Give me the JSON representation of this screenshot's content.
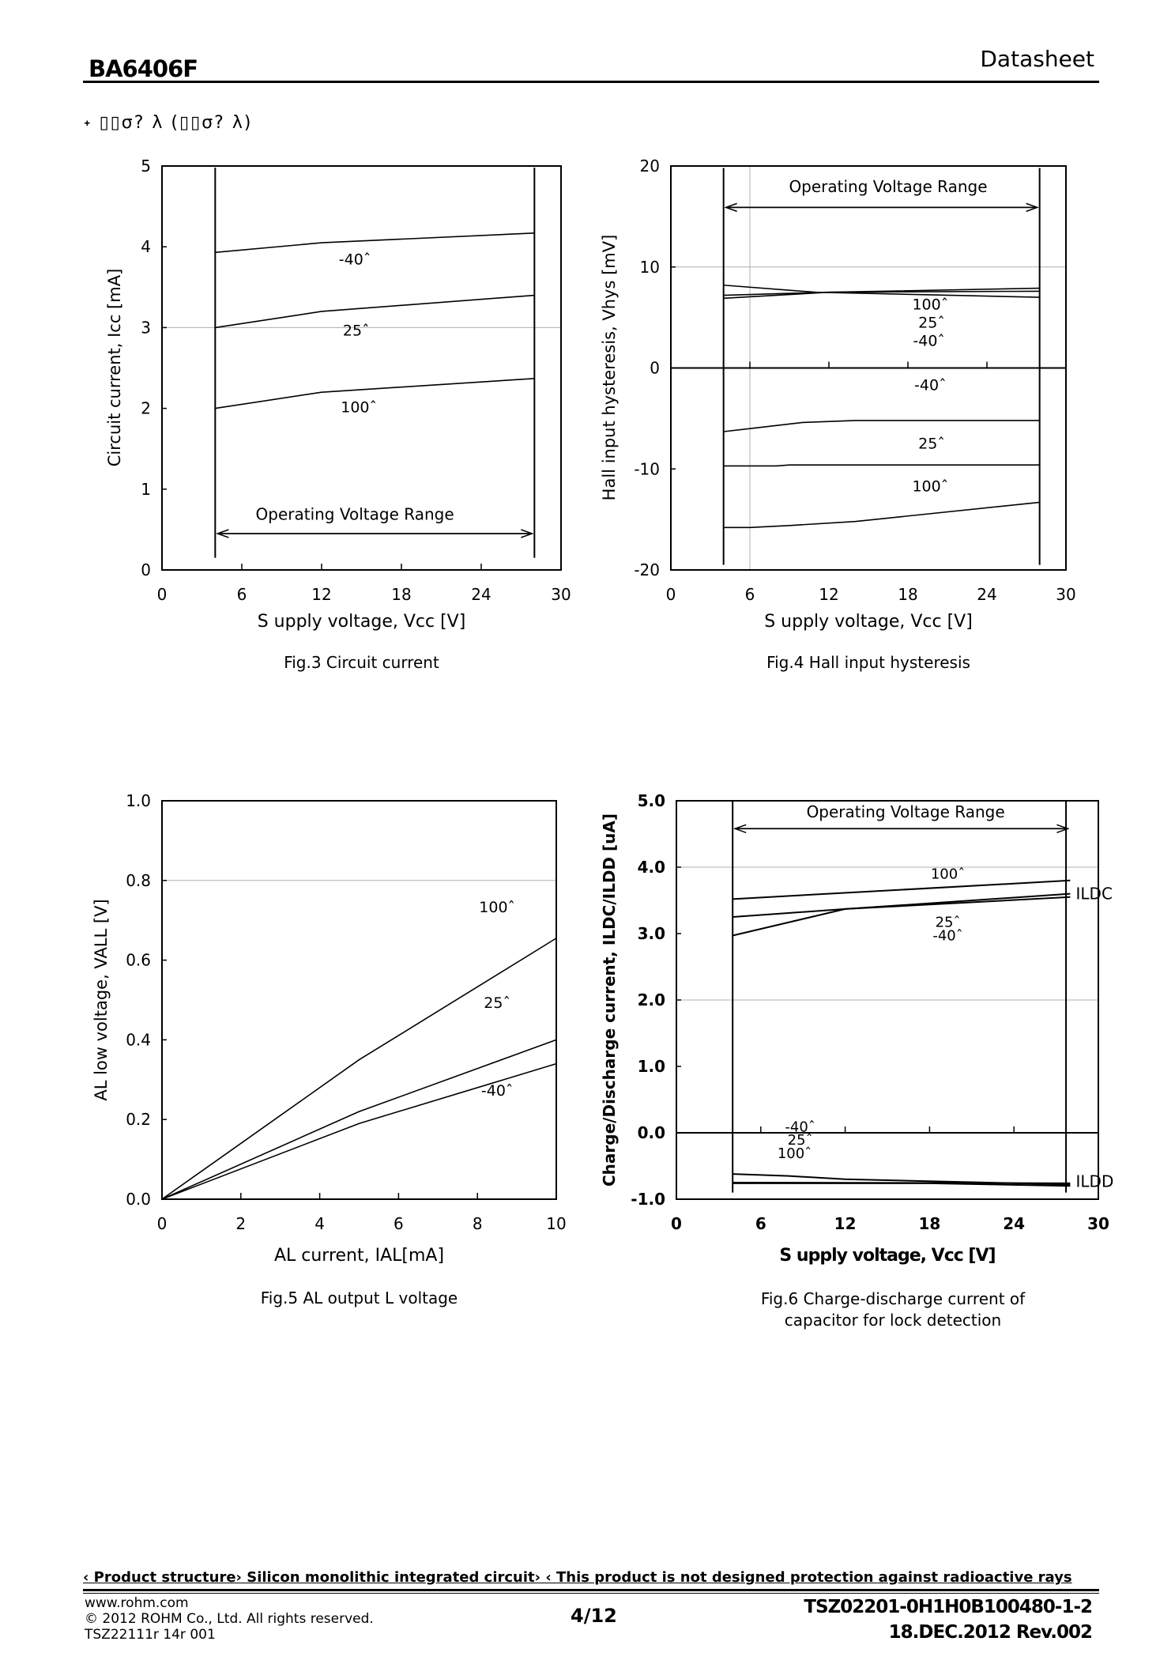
{
  "header": {
    "model": "BA6406F",
    "doc_type": "Datasheet"
  },
  "subheading": "˖ ▯▯σ? λ (▯▯σ? λ)",
  "chart_data": [
    {
      "type": "line",
      "caption": "Fig.3 Circuit current",
      "xlabel": "S upply voltage, Vcc [V]",
      "ylabel": "Circuit current, Icc [mA]",
      "xlim": [
        0,
        30
      ],
      "ylim": [
        0,
        5
      ],
      "xticks": [
        "0",
        "6",
        "12",
        "18",
        "24",
        "30"
      ],
      "xtick_values": [
        0,
        6,
        12,
        18,
        24,
        30
      ],
      "yticks": [
        "0",
        "1",
        "2",
        "3",
        "4",
        "5"
      ],
      "ytick_values": [
        0,
        1,
        2,
        3,
        4,
        5
      ],
      "grid_y": [
        3
      ],
      "grid_x": [],
      "operating_range": {
        "label": "Operating Voltage Range",
        "from": 4,
        "to": 28
      },
      "series": [
        {
          "name": "-40ˆ",
          "x": [
            4,
            12,
            28
          ],
          "y": [
            3.93,
            4.05,
            4.17
          ]
        },
        {
          "name": "25ˆ",
          "x": [
            4,
            12,
            28
          ],
          "y": [
            3.0,
            3.2,
            3.4
          ]
        },
        {
          "name": "100ˆ",
          "x": [
            4,
            12,
            28
          ],
          "y": [
            2.0,
            2.2,
            2.37
          ]
        }
      ]
    },
    {
      "type": "line",
      "caption": "Fig.4 Hall input hysteresis",
      "xlabel": "S upply voltage, Vcc [V]",
      "ylabel": "Hall input hysteresis, Vhys [mV]",
      "xlim": [
        0,
        30
      ],
      "ylim": [
        -20,
        20
      ],
      "xticks": [
        "0",
        "6",
        "12",
        "18",
        "24",
        "30"
      ],
      "xtick_values": [
        0,
        6,
        12,
        18,
        24,
        30
      ],
      "yticks": [
        "-20",
        "-10",
        "0",
        "10",
        "20"
      ],
      "ytick_values": [
        -20,
        -10,
        0,
        10,
        20
      ],
      "grid_y": [
        10
      ],
      "grid_x": [
        6
      ],
      "operating_range": {
        "label": "Operating Voltage Range",
        "from": 4,
        "to": 28
      },
      "series": [
        {
          "name": "100ˆ",
          "x": [
            4,
            11,
            28
          ],
          "y": [
            8.2,
            7.5,
            7.0
          ]
        },
        {
          "name": "25ˆ",
          "x": [
            4,
            12,
            28
          ],
          "y": [
            7.2,
            7.5,
            7.6
          ]
        },
        {
          "name": "-40ˆ",
          "x": [
            4,
            12,
            28
          ],
          "y": [
            6.9,
            7.5,
            7.9
          ]
        },
        {
          "name": "-40ˆ",
          "x": [
            4,
            6,
            10,
            14,
            28
          ],
          "y": [
            -6.3,
            -6.0,
            -5.4,
            -5.2,
            -5.2
          ]
        },
        {
          "name": "25ˆ",
          "x": [
            4,
            8,
            9,
            28
          ],
          "y": [
            -9.7,
            -9.7,
            -9.6,
            -9.6
          ]
        },
        {
          "name": "100ˆ",
          "x": [
            4,
            6,
            9,
            14,
            28
          ],
          "y": [
            -15.8,
            -15.8,
            -15.6,
            -15.2,
            -13.3
          ]
        }
      ]
    },
    {
      "type": "line",
      "caption": "Fig.5 AL output L voltage",
      "xlabel": "AL current, IAL[mA]",
      "ylabel": "AL low voltage, VALL [V]",
      "xlim": [
        0,
        10
      ],
      "ylim": [
        0,
        1.0
      ],
      "xticks": [
        "0",
        "2",
        "4",
        "6",
        "8",
        "10"
      ],
      "xtick_values": [
        0,
        2,
        4,
        6,
        8,
        10
      ],
      "yticks": [
        "0.0",
        "0.2",
        "0.4",
        "0.6",
        "0.8",
        "1.0"
      ],
      "ytick_values": [
        0,
        0.2,
        0.4,
        0.6,
        0.8,
        1.0
      ],
      "grid_y": [
        0.8
      ],
      "grid_x": [],
      "series": [
        {
          "name": "100ˆ",
          "x": [
            0,
            5,
            10
          ],
          "y": [
            0,
            0.35,
            0.655
          ]
        },
        {
          "name": "25ˆ",
          "x": [
            0,
            5,
            10
          ],
          "y": [
            0,
            0.22,
            0.4
          ]
        },
        {
          "name": "-40ˆ",
          "x": [
            0,
            5,
            10
          ],
          "y": [
            0,
            0.19,
            0.34
          ]
        }
      ]
    },
    {
      "type": "line",
      "caption": "Fig.6 Charge-discharge current of capacitor for lock detection",
      "xlabel": "S upply voltage, Vcc [V]",
      "ylabel": "Charge/Discharge current, ILDC/ILDD [uA]",
      "xlim": [
        0,
        30
      ],
      "ylim": [
        -1.0,
        5.0
      ],
      "xticks": [
        "0",
        "6",
        "12",
        "18",
        "24",
        "30"
      ],
      "xtick_values": [
        0,
        6,
        12,
        18,
        24,
        30
      ],
      "yticks": [
        "-1.0",
        "0.0",
        "1.0",
        "2.0",
        "3.0",
        "4.0",
        "5.0"
      ],
      "ytick_values": [
        -1,
        0,
        1,
        2,
        3,
        4,
        5
      ],
      "grid_y": [
        4.0,
        2.0
      ],
      "grid_x": [],
      "operating_range": {
        "label": "Operating Voltage Range",
        "from": 4,
        "to": 28
      },
      "group_labels": [
        "ILDC",
        "ILDD"
      ],
      "series": [
        {
          "name": "100ˆ",
          "group": "ILDC",
          "x": [
            4,
            28
          ],
          "y": [
            3.52,
            3.8
          ]
        },
        {
          "name": "25ˆ",
          "group": "ILDC",
          "x": [
            4,
            12,
            28
          ],
          "y": [
            3.25,
            3.37,
            3.55
          ]
        },
        {
          "name": "-40ˆ",
          "group": "ILDC",
          "x": [
            4,
            12,
            28
          ],
          "y": [
            2.97,
            3.37,
            3.6
          ]
        },
        {
          "name": "-40ˆ",
          "group": "ILDD",
          "x": [
            4,
            8,
            12,
            28
          ],
          "y": [
            -0.62,
            -0.65,
            -0.7,
            -0.78
          ]
        },
        {
          "name": "25ˆ",
          "group": "ILDD",
          "x": [
            4,
            28
          ],
          "y": [
            -0.75,
            -0.76
          ]
        },
        {
          "name": "100ˆ",
          "group": "ILDD",
          "x": [
            4,
            18,
            28
          ],
          "y": [
            -0.76,
            -0.76,
            -0.8
          ]
        }
      ]
    }
  ],
  "footer": {
    "note": "‹ Product structure› Silicon monolithic integrated circuit› ‹ This product is not designed protection against radioactive rays",
    "website": "www.rohm.com",
    "copyright": "© 2012 ROHM Co., Ltd. All rights reserved.",
    "form_code": "TSZ22111r 14r 001",
    "page": "4/12",
    "doc_code": "TSZ02201-0H1H0B100480-1-2",
    "date_rev": "18.DEC.2012 Rev.002"
  }
}
